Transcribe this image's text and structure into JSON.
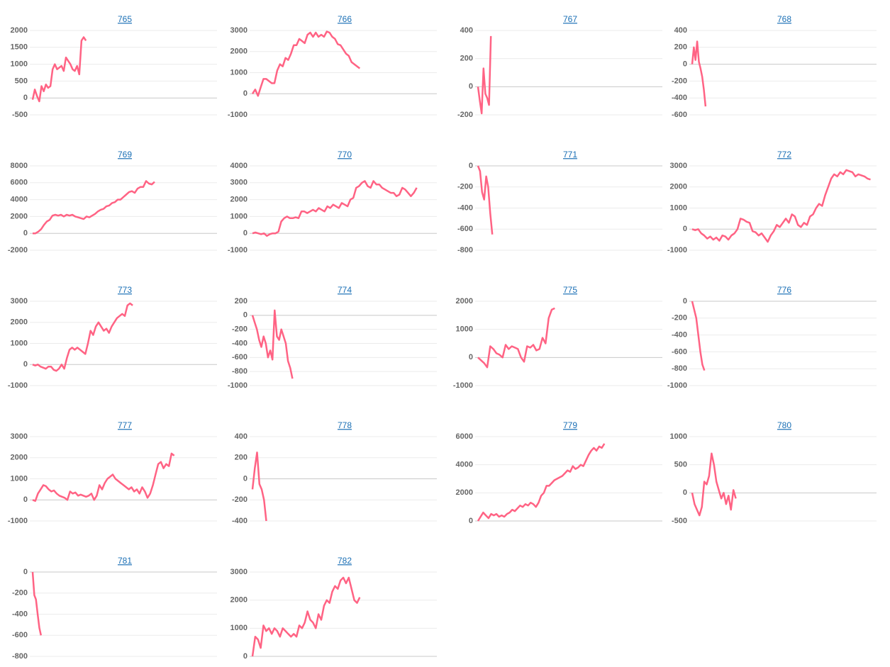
{
  "chart_data": [
    {
      "type": "line",
      "title": "765",
      "color": "#ff6384",
      "grid": true,
      "xlim": [
        0,
        83
      ],
      "ylim": [
        -500,
        2000
      ],
      "yticks": [
        -500,
        0,
        500,
        1000,
        1500,
        2000
      ],
      "values": [
        -50,
        250,
        50,
        -100,
        350,
        200,
        400,
        300,
        350,
        850,
        1000,
        850,
        900,
        950,
        800,
        1200,
        1100,
        1000,
        850,
        800,
        950,
        700,
        1700,
        1800,
        1700
      ]
    },
    {
      "type": "line",
      "title": "766",
      "color": "#ff6384",
      "grid": true,
      "xlim": [
        0,
        67
      ],
      "ylim": [
        -1000,
        3000
      ],
      "yticks": [
        -1000,
        0,
        1000,
        2000,
        3000
      ],
      "values": [
        0,
        200,
        -100,
        300,
        700,
        700,
        600,
        500,
        500,
        1100,
        1400,
        1300,
        1700,
        1600,
        1900,
        2300,
        2300,
        2600,
        2500,
        2400,
        2800,
        2900,
        2700,
        2900,
        2700,
        2800,
        2700,
        2950,
        2900,
        2700,
        2600,
        2350,
        2300,
        2100,
        1900,
        1800,
        1500,
        1400,
        1300,
        1200
      ]
    },
    {
      "type": "line",
      "title": "767",
      "color": "#ff6384",
      "grid": true,
      "xlim": [
        0,
        100
      ],
      "ylim": [
        -200,
        400
      ],
      "yticks": [
        -200,
        0,
        200,
        400
      ],
      "values": [
        0,
        -100,
        -190,
        130,
        -50,
        -80,
        -130,
        360
      ]
    },
    {
      "type": "line",
      "title": "768",
      "color": "#ff6384",
      "grid": true,
      "xlim": [
        0,
        110
      ],
      "ylim": [
        -600,
        400
      ],
      "yticks": [
        -600,
        -400,
        -200,
        0,
        200,
        400
      ],
      "values": [
        0,
        200,
        50,
        270,
        30,
        -50,
        -150,
        -300,
        -500
      ]
    },
    {
      "type": "line",
      "title": "769",
      "color": "#ff6384",
      "grid": true,
      "xlim": [
        0,
        65
      ],
      "ylim": [
        -2000,
        8000
      ],
      "yticks": [
        -2000,
        0,
        2000,
        4000,
        6000,
        8000
      ],
      "values": [
        0,
        0,
        200,
        500,
        1000,
        1400,
        1600,
        2100,
        2200,
        2100,
        2200,
        2000,
        2200,
        2100,
        2200,
        2000,
        1900,
        1800,
        1700,
        2000,
        1900,
        2100,
        2300,
        2600,
        2800,
        2900,
        3200,
        3300,
        3600,
        3700,
        4000,
        4000,
        4300,
        4600,
        4900,
        5000,
        4800,
        5300,
        5500,
        5500,
        6200,
        5900,
        5800,
        6100
      ]
    },
    {
      "type": "line",
      "title": "770",
      "color": "#ff6384",
      "grid": true,
      "xlim": [
        0,
        64
      ],
      "ylim": [
        -1000,
        4000
      ],
      "yticks": [
        -1000,
        0,
        1000,
        2000,
        3000,
        4000
      ],
      "values": [
        0,
        50,
        0,
        -50,
        0,
        -150,
        -50,
        0,
        0,
        100,
        700,
        900,
        1000,
        900,
        900,
        950,
        900,
        1300,
        1300,
        1200,
        1300,
        1400,
        1300,
        1500,
        1400,
        1300,
        1600,
        1500,
        1700,
        1600,
        1500,
        1800,
        1700,
        1600,
        2000,
        2100,
        2700,
        2800,
        3000,
        3100,
        2800,
        2700,
        3100,
        2900,
        2900,
        2700,
        2600,
        2500,
        2400,
        2400,
        2200,
        2300,
        2700,
        2600,
        2400,
        2200,
        2400,
        2700
      ]
    },
    {
      "type": "line",
      "title": "771",
      "color": "#ff6384",
      "grid": true,
      "xlim": [
        0,
        90
      ],
      "ylim": [
        -800,
        0
      ],
      "yticks": [
        -800,
        -600,
        -400,
        -200,
        0
      ],
      "values": [
        0,
        -50,
        -250,
        -320,
        -100,
        -200,
        -450,
        -650
      ]
    },
    {
      "type": "line",
      "title": "772",
      "color": "#ff6384",
      "grid": true,
      "xlim": [
        0,
        61
      ],
      "ylim": [
        -1000,
        3000
      ],
      "yticks": [
        -1000,
        0,
        1000,
        2000,
        3000
      ],
      "values": [
        0,
        -50,
        0,
        -200,
        -300,
        -450,
        -350,
        -500,
        -400,
        -550,
        -300,
        -350,
        -500,
        -300,
        -200,
        0,
        500,
        450,
        350,
        300,
        -100,
        -150,
        -300,
        -200,
        -400,
        -600,
        -300,
        -100,
        200,
        100,
        300,
        500,
        300,
        700,
        600,
        200,
        100,
        300,
        200,
        600,
        700,
        1000,
        1200,
        1100,
        1600,
        2000,
        2400,
        2600,
        2500,
        2700,
        2600,
        2800,
        2750,
        2700,
        2500,
        2600,
        2550,
        2500,
        2400,
        2350
      ]
    },
    {
      "type": "line",
      "title": "773",
      "color": "#ff6384",
      "grid": true,
      "xlim": [
        0,
        70
      ],
      "ylim": [
        -1000,
        3000
      ],
      "yticks": [
        -1000,
        0,
        1000,
        2000,
        3000
      ],
      "values": [
        0,
        -50,
        0,
        -100,
        -150,
        -200,
        -100,
        -100,
        -250,
        -300,
        -200,
        0,
        -200,
        300,
        700,
        800,
        700,
        800,
        700,
        600,
        500,
        1000,
        1600,
        1400,
        1800,
        2000,
        1800,
        1600,
        1700,
        1500,
        1800,
        2000,
        2200,
        2300,
        2400,
        2300,
        2800,
        2900,
        2800
      ]
    },
    {
      "type": "line",
      "title": "774",
      "color": "#ff6384",
      "grid": true,
      "xlim": [
        0,
        83
      ],
      "ylim": [
        -1000,
        200
      ],
      "yticks": [
        -1000,
        -800,
        -600,
        -400,
        -200,
        0,
        200
      ],
      "values": [
        0,
        -100,
        -200,
        -350,
        -450,
        -300,
        -400,
        -600,
        -500,
        -630,
        70,
        -300,
        -350,
        -200,
        -300,
        -400,
        -650,
        -750,
        -900
      ]
    },
    {
      "type": "line",
      "title": "775",
      "color": "#ff6384",
      "grid": true,
      "xlim": [
        0,
        60
      ],
      "ylim": [
        -1000,
        2000
      ],
      "yticks": [
        -1000,
        0,
        1000,
        2000
      ],
      "values": [
        0,
        -100,
        -200,
        -350,
        400,
        300,
        150,
        100,
        0,
        450,
        300,
        400,
        350,
        300,
        0,
        -150,
        400,
        350,
        450,
        250,
        300,
        700,
        500,
        1400,
        1700,
        1750
      ]
    },
    {
      "type": "line",
      "title": "776",
      "color": "#ff6384",
      "grid": true,
      "xlim": [
        0,
        90
      ],
      "ylim": [
        -1000,
        0
      ],
      "yticks": [
        -1000,
        -800,
        -600,
        -400,
        -200,
        0
      ],
      "values": [
        0,
        -100,
        -200,
        -400,
        -600,
        -750,
        -820
      ]
    },
    {
      "type": "line",
      "title": "777",
      "color": "#ff6384",
      "grid": true,
      "xlim": [
        0,
        69
      ],
      "ylim": [
        -1000,
        3000
      ],
      "yticks": [
        -1000,
        0,
        1000,
        2000,
        3000
      ],
      "values": [
        0,
        -50,
        300,
        500,
        700,
        650,
        500,
        400,
        450,
        300,
        200,
        150,
        100,
        0,
        400,
        300,
        350,
        200,
        250,
        200,
        150,
        200,
        300,
        0,
        200,
        700,
        500,
        800,
        1000,
        1100,
        1200,
        1000,
        900,
        800,
        700,
        600,
        500,
        600,
        400,
        500,
        300,
        600,
        400,
        100,
        300,
        700,
        1200,
        1700,
        1800,
        1500,
        1700,
        1600,
        2200,
        2100
      ]
    },
    {
      "type": "line",
      "title": "778",
      "color": "#ff6384",
      "grid": true,
      "xlim": [
        0,
        80
      ],
      "ylim": [
        -400,
        400
      ],
      "yticks": [
        -400,
        -200,
        0,
        200,
        400
      ],
      "values": [
        -100,
        100,
        250,
        -50,
        -100,
        -200,
        -400
      ]
    },
    {
      "type": "line",
      "title": "779",
      "color": "#ff6384",
      "grid": true,
      "xlim": [
        0,
        70
      ],
      "ylim": [
        0,
        6000
      ],
      "yticks": [
        0,
        2000,
        4000,
        6000
      ],
      "values": [
        0,
        300,
        600,
        400,
        200,
        500,
        400,
        500,
        300,
        400,
        300,
        500,
        600,
        800,
        700,
        900,
        1100,
        1000,
        1200,
        1100,
        1300,
        1200,
        1000,
        1300,
        1800,
        2000,
        2500,
        2500,
        2700,
        2900,
        3000,
        3100,
        3200,
        3400,
        3600,
        3500,
        3900,
        3700,
        3800,
        4000,
        3900,
        4300,
        4700,
        5000,
        5200,
        5000,
        5300,
        5200,
        5500
      ]
    },
    {
      "type": "line",
      "title": "780",
      "color": "#ff6384",
      "grid": true,
      "xlim": [
        0,
        76
      ],
      "ylim": [
        -500,
        1000
      ],
      "yticks": [
        -500,
        0,
        500,
        1000
      ],
      "values": [
        0,
        -200,
        -300,
        -400,
        -250,
        200,
        150,
        300,
        700,
        500,
        200,
        50,
        -100,
        0,
        -200,
        -50,
        -300,
        50,
        -100
      ]
    },
    {
      "type": "line",
      "title": "781",
      "color": "#ff6384",
      "grid": true,
      "xlim": [
        0,
        110
      ],
      "ylim": [
        -800,
        0
      ],
      "yticks": [
        -800,
        -600,
        -400,
        -200,
        0
      ],
      "values": [
        0,
        -220,
        -260,
        -400,
        -530,
        -600
      ]
    },
    {
      "type": "line",
      "title": "782",
      "color": "#ff6384",
      "grid": true,
      "xlim": [
        0,
        67
      ],
      "ylim": [
        0,
        3000
      ],
      "yticks": [
        0,
        1000,
        2000,
        3000
      ],
      "values": [
        0,
        700,
        600,
        300,
        1100,
        900,
        1000,
        800,
        1000,
        900,
        700,
        1000,
        900,
        800,
        700,
        800,
        700,
        1100,
        1000,
        1200,
        1600,
        1300,
        1200,
        1000,
        1500,
        1300,
        1800,
        2000,
        1900,
        2300,
        2500,
        2400,
        2700,
        2800,
        2600,
        2800,
        2400,
        2000,
        1900,
        2100
      ]
    }
  ]
}
